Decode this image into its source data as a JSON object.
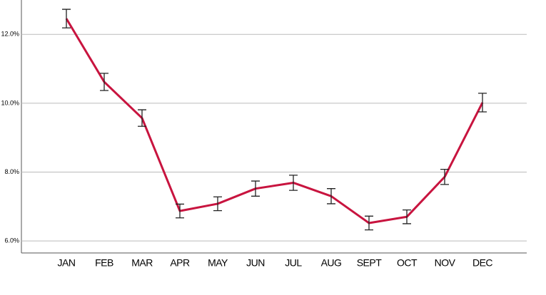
{
  "chart_data": {
    "type": "line",
    "categories": [
      "JAN",
      "FEB",
      "MAR",
      "APR",
      "MAY",
      "JUN",
      "JUL",
      "AUG",
      "SEPT",
      "OCT",
      "NOV",
      "DEC"
    ],
    "values": [
      12.46,
      10.62,
      9.57,
      6.87,
      7.08,
      7.52,
      7.69,
      7.3,
      6.52,
      6.7,
      7.86,
      10.02
    ],
    "errors": [
      0.27,
      0.25,
      0.24,
      0.2,
      0.2,
      0.22,
      0.22,
      0.22,
      0.2,
      0.2,
      0.22,
      0.27
    ],
    "color": "#c8143f",
    "ylim": [
      5.65,
      13
    ],
    "yticks": [
      {
        "value": 6,
        "label": "6.0%"
      },
      {
        "value": 8,
        "label": "8.0%"
      },
      {
        "value": 10,
        "label": "10.0%"
      },
      {
        "value": 12,
        "label": "12.0%"
      }
    ],
    "grid": true
  }
}
